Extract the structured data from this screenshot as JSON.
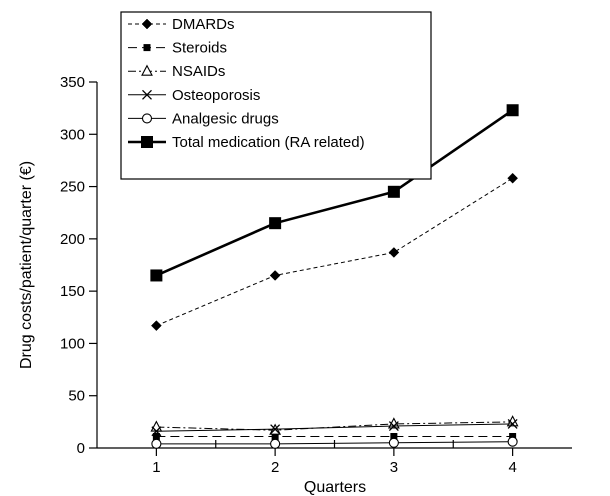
{
  "chart_data": {
    "type": "line",
    "xlabel": "Quarters",
    "ylabel": "Drug costs/patient/quarter (€)",
    "x": [
      1,
      2,
      3,
      4
    ],
    "xticks": [
      "1",
      "2",
      "3",
      "4"
    ],
    "xlim": [
      0.5,
      4.5
    ],
    "ylim": [
      0,
      350
    ],
    "yticks": [
      0,
      50,
      100,
      150,
      200,
      250,
      300,
      350
    ],
    "grid": false,
    "legend_position": "top-left",
    "series": [
      {
        "name": "DMARDs",
        "values": [
          117,
          165,
          187,
          258
        ],
        "marker": "diamond",
        "dash": "dashed",
        "line_width": "thin"
      },
      {
        "name": "Steroids",
        "values": [
          11,
          11,
          11,
          11
        ],
        "marker": "square-small",
        "dash": "long-dash",
        "line_width": "thin"
      },
      {
        "name": "NSAIDs",
        "values": [
          20,
          17,
          23,
          25
        ],
        "marker": "triangle-open",
        "dash": "dash-dot",
        "line_width": "thin"
      },
      {
        "name": "Osteoporosis",
        "values": [
          16,
          18,
          21,
          23
        ],
        "marker": "x",
        "dash": "solid",
        "line_width": "thin"
      },
      {
        "name": "Analgesic drugs",
        "values": [
          4,
          4,
          5,
          6
        ],
        "marker": "circle-open",
        "dash": "solid",
        "line_width": "thin"
      },
      {
        "name": "Total medication (RA related)",
        "values": [
          165,
          215,
          245,
          323
        ],
        "marker": "square-large",
        "dash": "solid",
        "line_width": "thick"
      }
    ]
  }
}
